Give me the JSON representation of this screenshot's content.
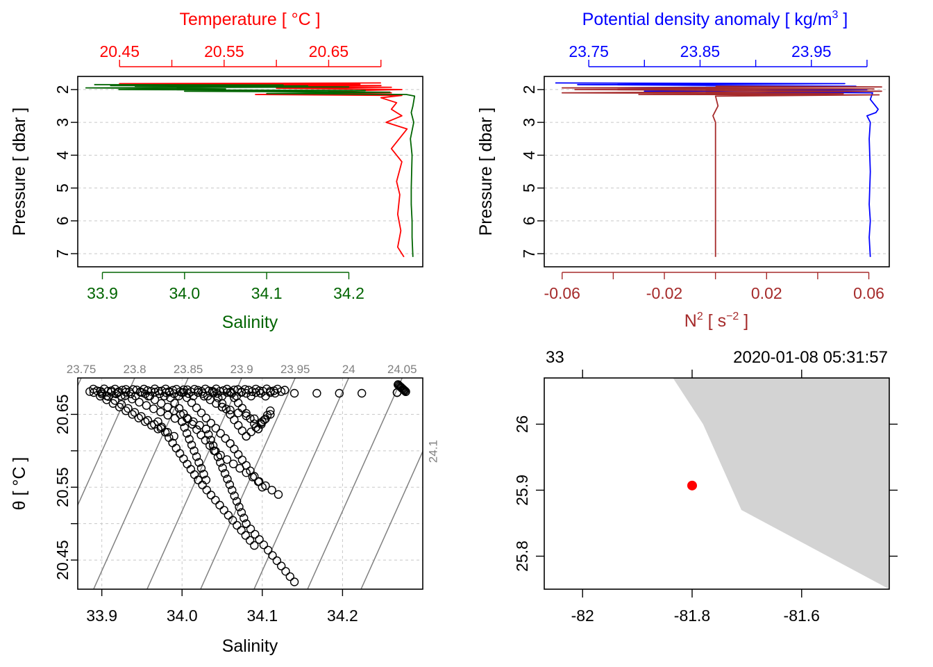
{
  "chart_data": [
    {
      "panel": "profile-temperature-salinity",
      "type": "line",
      "title_top": "Temperature [ °C ]",
      "xlabel": "Salinity",
      "ylabel": "Pressure [ dbar ]",
      "colors": {
        "temperature": "#ff0000",
        "salinity": "#006400"
      },
      "temperature_axis": {
        "lim": [
          20.41,
          20.74
        ],
        "ticks": [
          20.45,
          20.5,
          20.55,
          20.6,
          20.65,
          20.7
        ],
        "labels": [
          "20.45",
          "",
          "20.55",
          "",
          "20.65",
          ""
        ]
      },
      "salinity_axis": {
        "lim": [
          33.87,
          34.29
        ],
        "ticks": [
          33.9,
          34.0,
          34.1,
          34.2
        ],
        "labels": [
          "33.9",
          "34.0",
          "34.1",
          "34.2"
        ]
      },
      "pressure_axis": {
        "lim": [
          7.4,
          1.6
        ],
        "ticks": [
          2,
          3,
          4,
          5,
          6,
          7
        ],
        "labels": [
          "2",
          "3",
          "4",
          "5",
          "6",
          "7"
        ]
      },
      "grid": true,
      "series": [
        {
          "key": "temperature",
          "x": [
            20.7,
            20.45,
            20.68,
            20.5,
            20.7,
            20.55,
            20.71,
            20.6,
            20.72,
            20.65,
            20.71,
            20.58,
            20.72,
            20.7,
            20.715,
            20.71,
            20.715,
            20.72,
            20.705,
            20.725,
            20.71,
            20.72,
            20.715,
            20.718,
            20.716,
            20.719,
            20.716,
            20.72,
            20.722
          ],
          "y": [
            1.8,
            1.82,
            1.84,
            1.86,
            1.88,
            1.9,
            1.93,
            1.96,
            2.0,
            2.05,
            2.1,
            2.15,
            2.18,
            2.25,
            2.4,
            2.6,
            2.7,
            2.8,
            3.0,
            3.2,
            3.8,
            4.2,
            4.8,
            5.2,
            5.8,
            6.3,
            6.8,
            7.0,
            7.1
          ]
        },
        {
          "key": "salinity",
          "x": [
            33.89,
            34.12,
            33.91,
            34.15,
            33.94,
            34.2,
            33.88,
            34.05,
            33.92,
            34.22,
            34.0,
            34.25,
            34.1,
            34.27,
            34.28,
            34.278,
            34.276,
            34.279,
            34.275,
            34.277,
            34.276,
            34.276,
            34.277,
            34.277,
            34.278
          ],
          "y": [
            1.85,
            1.86,
            1.88,
            1.89,
            1.9,
            1.92,
            1.95,
            1.98,
            2.0,
            2.03,
            2.05,
            2.08,
            2.12,
            2.15,
            2.2,
            2.5,
            2.7,
            3.0,
            3.5,
            4.0,
            5.0,
            5.5,
            6.0,
            6.5,
            7.1
          ]
        }
      ]
    },
    {
      "panel": "profile-density-n2",
      "type": "line",
      "title_top": "Potential density anomaly [ kg/m",
      "title_top_sup": "3",
      "title_top_end": " ]",
      "xlabel": "N",
      "xlabel_sup": "2",
      "xlabel_mid": " [ s",
      "xlabel_sup2": "−2",
      "xlabel_end": " ]",
      "ylabel": "Pressure [ dbar ]",
      "colors": {
        "density": "#0000ff",
        "n2": "#a52a2a"
      },
      "density_axis": {
        "lim": [
          23.71,
          24.02
        ],
        "ticks": [
          23.75,
          23.8,
          23.85,
          23.9,
          23.95,
          24.0
        ],
        "labels": [
          "23.75",
          "",
          "23.85",
          "",
          "23.95",
          ""
        ]
      },
      "n2_axis": {
        "lim": [
          -0.067,
          0.068
        ],
        "ticks": [
          -0.06,
          -0.04,
          -0.02,
          0.0,
          0.02,
          0.04,
          0.06
        ],
        "labels": [
          "-0.06",
          "",
          "-0.02",
          "",
          "0.02",
          "",
          "0.06"
        ]
      },
      "pressure_axis": {
        "lim": [
          7.4,
          1.6
        ],
        "ticks": [
          2,
          3,
          4,
          5,
          6,
          7
        ],
        "labels": [
          "2",
          "3",
          "4",
          "5",
          "6",
          "7"
        ]
      },
      "grid": true,
      "series": [
        {
          "key": "density",
          "x": [
            23.72,
            23.98,
            23.74,
            23.99,
            23.76,
            24.0,
            23.8,
            24.005,
            24.003,
            24.01,
            24.008,
            24.0,
            24.003,
            24.002,
            24.003,
            24.002,
            24.003,
            24.002,
            24.003
          ],
          "y": [
            1.8,
            1.82,
            1.85,
            1.9,
            1.95,
            2.0,
            2.05,
            2.1,
            2.3,
            2.6,
            2.7,
            2.8,
            3.0,
            3.5,
            4.5,
            5.5,
            6.0,
            6.5,
            7.1
          ]
        },
        {
          "key": "n2",
          "x": [
            0.0,
            0.065,
            -0.06,
            0.062,
            -0.055,
            0.065,
            -0.06,
            0.05,
            -0.03,
            0.064,
            0.0,
            0.001,
            -0.001,
            0.0,
            0.0,
            0.0
          ],
          "y": [
            1.9,
            1.92,
            1.95,
            1.98,
            2.0,
            2.05,
            2.1,
            2.12,
            2.15,
            2.16,
            2.2,
            2.5,
            2.8,
            3.0,
            5.0,
            7.1
          ]
        }
      ]
    },
    {
      "panel": "ts-diagram",
      "type": "scatter",
      "xlabel": "Salinity",
      "ylabel": "θ [ °C ]",
      "xlim": [
        33.87,
        34.3
      ],
      "ylim": [
        20.41,
        20.7
      ],
      "xticks": [
        33.9,
        34.0,
        34.1,
        34.2
      ],
      "xtick_labels": [
        "33.9",
        "34.0",
        "34.1",
        "34.2"
      ],
      "yticks": [
        20.45,
        20.5,
        20.55,
        20.6,
        20.65
      ],
      "ytick_labels": [
        "20.45",
        "",
        "20.55",
        "",
        "20.65"
      ],
      "density_contours": {
        "levels": [
          23.75,
          23.8,
          23.85,
          23.9,
          23.95,
          24.0,
          24.05,
          24.1
        ],
        "labels": [
          "23.75",
          "23.8",
          "23.85",
          "23.9",
          "23.95",
          "24",
          "24.05",
          "24.1"
        ],
        "color": "#808080"
      },
      "grid": true,
      "point_color": "#000000"
    },
    {
      "panel": "station-map",
      "type": "map",
      "top_labels": [
        "33",
        "2020-01-08 05:31:57"
      ],
      "xlim": [
        -82.07,
        -81.44
      ],
      "ylim": [
        25.75,
        26.07
      ],
      "xticks": [
        -82.0,
        -81.8,
        -81.6
      ],
      "xtick_labels": [
        "-82",
        "-81.8",
        "-81.6"
      ],
      "yticks": [
        25.8,
        25.9,
        26.0
      ],
      "ytick_labels": [
        "25.8",
        "25.9",
        "26"
      ],
      "land_color": "#d3d3d3",
      "land": {
        "lon": [
          -81.835,
          -81.44,
          -81.44,
          -81.71,
          -81.78
        ],
        "lat": [
          26.07,
          26.07,
          25.75,
          25.87,
          26.0
        ]
      },
      "station": {
        "lon": -81.8,
        "lat": 25.907,
        "color": "#ff0000"
      }
    }
  ]
}
